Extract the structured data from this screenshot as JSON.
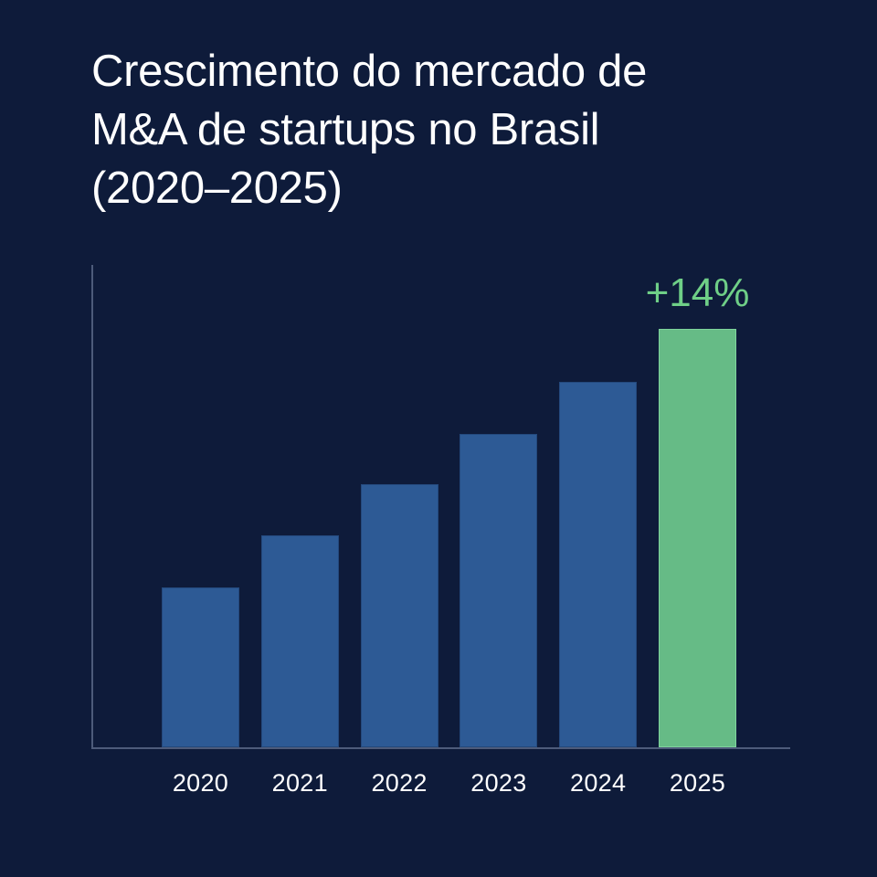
{
  "title_lines": [
    "Crescimento do mercado de",
    "M&A de startups no Brasil",
    "(2020–2025)"
  ],
  "colors": {
    "background": "#0e1b3a",
    "bar_default": "#2d5a95",
    "bar_highlight": "#66bb86",
    "annotation": "#6fcf87",
    "axis": "#4d5b7a",
    "text": "#ffffff"
  },
  "chart_data": {
    "type": "bar",
    "title": "Crescimento do mercado de M&A de startups no Brasil (2020–2025)",
    "categories": [
      "2020",
      "2021",
      "2022",
      "2023",
      "2024",
      "2025"
    ],
    "values": [
      175,
      232,
      288,
      343,
      400,
      458
    ],
    "value_units": "relative (no y-axis scale shown)",
    "highlight": {
      "category": "2025",
      "color": "#66bb86"
    },
    "annotations": [
      {
        "category": "2025",
        "text": "+14%"
      }
    ],
    "xlabel": "",
    "ylabel": "",
    "ylim": [
      0,
      529
    ],
    "grid": false,
    "legend": null
  },
  "annotation_label": "+14%"
}
